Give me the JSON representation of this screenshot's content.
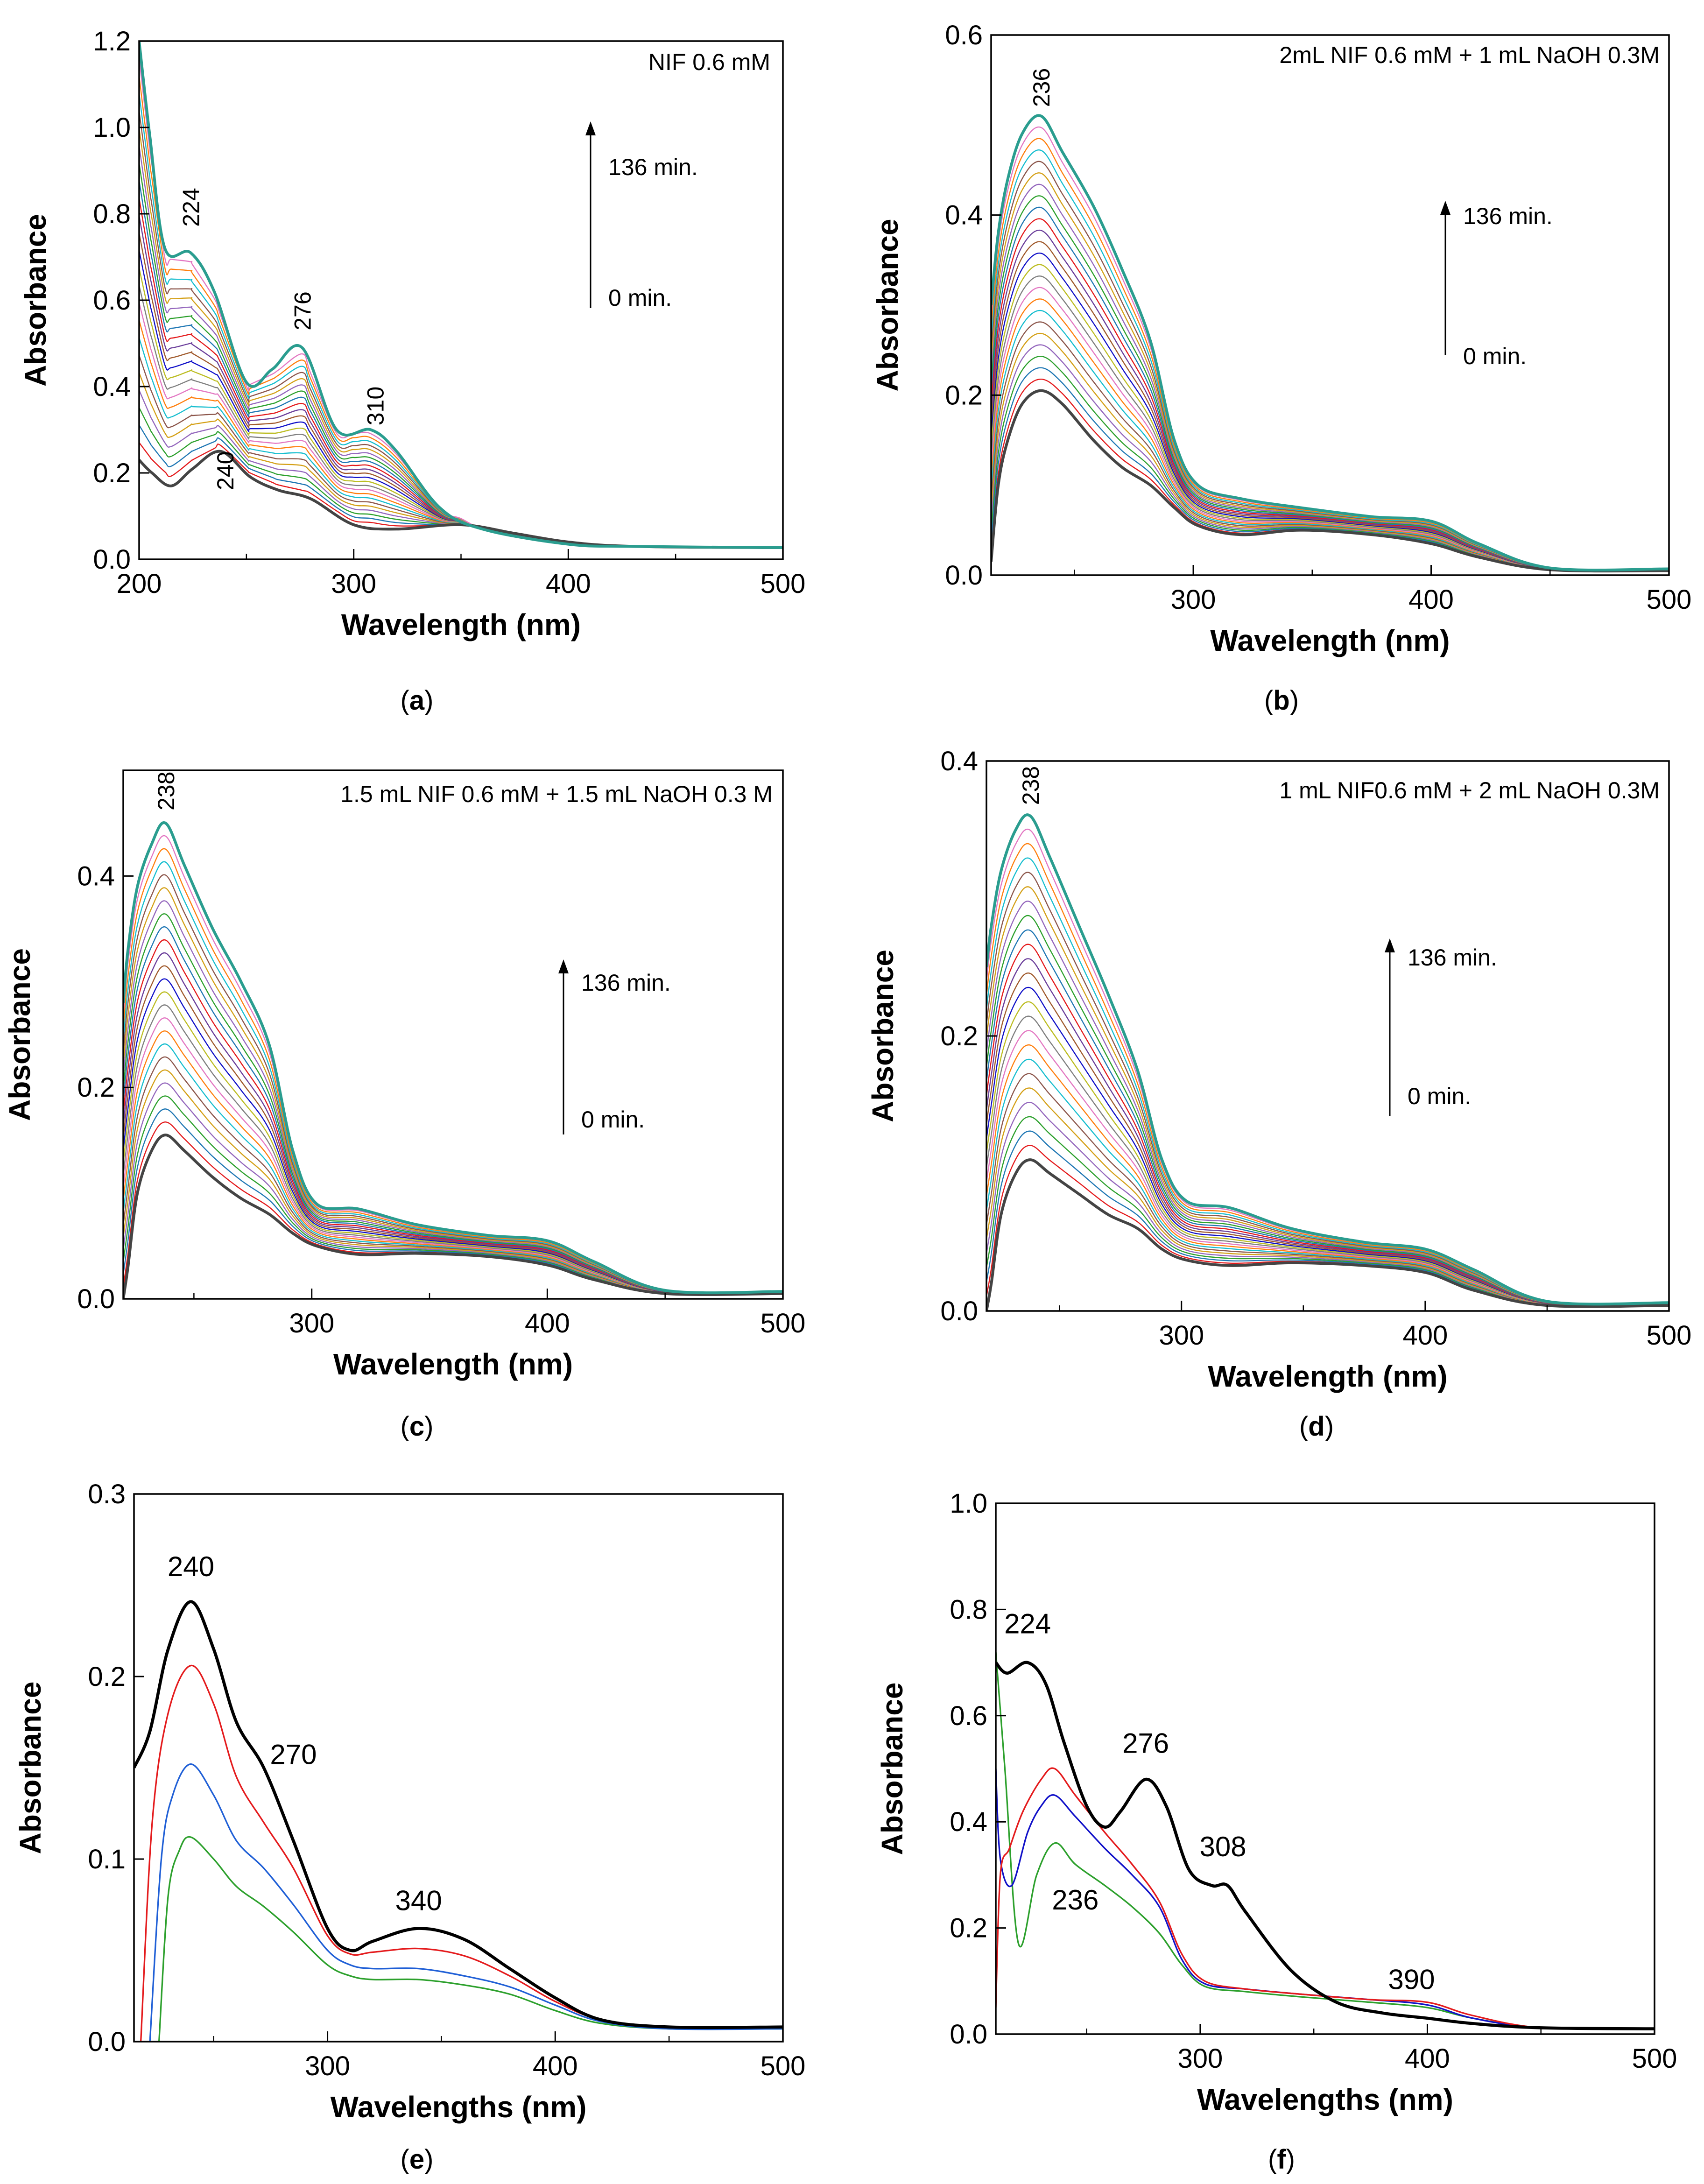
{
  "chart_data": [
    {
      "type": "line",
      "panel_label": "(a)",
      "label_letter": "a",
      "title": "NIF 0.6 mM",
      "xlabel": "Wavelength (nm)",
      "ylabel": "Absorbance",
      "xlim": [
        200,
        500
      ],
      "ylim": [
        0,
        1.2
      ],
      "xticks": [
        200,
        300,
        400,
        500
      ],
      "yticks": [
        0.0,
        0.2,
        0.4,
        0.6,
        0.8,
        1.0,
        1.2
      ],
      "ytick_labels": [
        "0.0",
        "0.2",
        "0.4",
        "0.6",
        "0.8",
        "1.0",
        "1.2"
      ],
      "time_arrow": {
        "start": "0 min.",
        "end": "136 min."
      },
      "peak_labels": [
        {
          "text": "224",
          "x": 224,
          "y": 0.77,
          "rotate": true
        },
        {
          "text": "276",
          "x": 276,
          "y": 0.53,
          "rotate": true
        },
        {
          "text": "310",
          "x": 310,
          "y": 0.31,
          "rotate": true
        },
        {
          "text": "240",
          "x": 240,
          "y": 0.16,
          "rotate": true
        }
      ],
      "series": [
        {
          "name": "0 min.",
          "emphasis": "first",
          "x": [
            200,
            206,
            215,
            225,
            238,
            252,
            265,
            280,
            300,
            320,
            350,
            375,
            400,
            430,
            500
          ],
          "y": [
            0.23,
            0.2,
            0.17,
            0.21,
            0.25,
            0.19,
            0.16,
            0.14,
            0.08,
            0.07,
            0.08,
            0.06,
            0.04,
            0.03,
            0.027
          ]
        },
        {
          "name": "136 min.",
          "emphasis": "last",
          "x": [
            200,
            205,
            212,
            224,
            235,
            250,
            262,
            276,
            292,
            308,
            320,
            340,
            360,
            400,
            430,
            500
          ],
          "y": [
            1.2,
            0.98,
            0.72,
            0.71,
            0.62,
            0.41,
            0.44,
            0.49,
            0.3,
            0.3,
            0.25,
            0.12,
            0.07,
            0.035,
            0.03,
            0.027
          ]
        }
      ]
    },
    {
      "type": "line",
      "panel_label": "(b)",
      "label_letter": "b",
      "title": "2mL NIF 0.6 mM + 1 mL NaOH 0.3M",
      "xlabel": "Wavelength (nm)",
      "ylabel": "Absorbance",
      "xlim": [
        215,
        500
      ],
      "ylim": [
        0,
        0.6
      ],
      "xticks": [
        300,
        400,
        500
      ],
      "yticks": [
        0.0,
        0.2,
        0.4,
        0.6
      ],
      "ytick_labels": [
        "0.0",
        "0.2",
        "0.4",
        "0.6"
      ],
      "time_arrow": {
        "start": "0 min.",
        "end": "136 min."
      },
      "peak_labels": [
        {
          "text": "236",
          "x": 236,
          "y": 0.52,
          "rotate": true
        }
      ],
      "series": [
        {
          "name": "0 min.",
          "emphasis": "first",
          "x": [
            215,
            218,
            222,
            228,
            236,
            245,
            258,
            270,
            282,
            292,
            302,
            320,
            345,
            375,
            400,
            420,
            450,
            500
          ],
          "y": [
            0.015,
            0.1,
            0.15,
            0.19,
            0.205,
            0.19,
            0.15,
            0.12,
            0.1,
            0.075,
            0.055,
            0.045,
            0.05,
            0.045,
            0.035,
            0.02,
            0.006,
            0.005
          ]
        },
        {
          "name": "136 min.",
          "emphasis": "last",
          "x": [
            215,
            218,
            222,
            228,
            236,
            245,
            258,
            270,
            282,
            292,
            302,
            320,
            345,
            375,
            400,
            420,
            450,
            500
          ],
          "y": [
            0.3,
            0.38,
            0.44,
            0.49,
            0.51,
            0.47,
            0.41,
            0.34,
            0.26,
            0.15,
            0.1,
            0.085,
            0.075,
            0.065,
            0.06,
            0.035,
            0.008,
            0.007
          ]
        }
      ]
    },
    {
      "type": "line",
      "panel_label": "(c)",
      "label_letter": "c",
      "title": "1.5 mL NIF 0.6 mM + 1.5 mL NaOH 0.3 M",
      "xlabel": "Wavelength (nm)",
      "ylabel": "Absorbance",
      "xlim": [
        220,
        500
      ],
      "ylim": [
        0,
        0.5
      ],
      "xticks": [
        300,
        400,
        500
      ],
      "yticks": [
        0.0,
        0.2,
        0.4
      ],
      "ytick_labels": [
        "0.0",
        "0.2",
        "0.4"
      ],
      "time_arrow": {
        "start": "0 min.",
        "end": "136 min."
      },
      "peak_labels": [
        {
          "text": "238",
          "x": 238,
          "y": 0.462,
          "rotate": true
        }
      ],
      "series": [
        {
          "name": "0 min.",
          "emphasis": "first",
          "x": [
            220,
            222,
            226,
            232,
            238,
            246,
            258,
            270,
            282,
            292,
            302,
            320,
            345,
            375,
            400,
            420,
            450,
            500
          ],
          "y": [
            0.0,
            0.03,
            0.1,
            0.14,
            0.155,
            0.14,
            0.115,
            0.095,
            0.08,
            0.062,
            0.05,
            0.042,
            0.043,
            0.04,
            0.032,
            0.018,
            0.005,
            0.005
          ]
        },
        {
          "name": "136 min.",
          "emphasis": "last",
          "x": [
            220,
            222,
            226,
            232,
            238,
            246,
            258,
            270,
            282,
            292,
            302,
            320,
            345,
            375,
            400,
            420,
            450,
            500
          ],
          "y": [
            0.28,
            0.33,
            0.39,
            0.43,
            0.45,
            0.41,
            0.35,
            0.3,
            0.24,
            0.14,
            0.09,
            0.085,
            0.07,
            0.06,
            0.055,
            0.035,
            0.008,
            0.007
          ]
        }
      ]
    },
    {
      "type": "line",
      "panel_label": "(d)",
      "label_letter": "d",
      "title": "1 mL NIF0.6 mM + 2 mL NaOH 0.3M",
      "xlabel": "Wavelength (nm)",
      "ylabel": "Absorbance",
      "xlim": [
        220,
        500
      ],
      "ylim": [
        0,
        0.4
      ],
      "xticks": [
        300,
        400,
        500
      ],
      "yticks": [
        0.0,
        0.2,
        0.4
      ],
      "ytick_labels": [
        "0.0",
        "0.2",
        "0.4"
      ],
      "time_arrow": {
        "start": "0 min.",
        "end": "136 min."
      },
      "peak_labels": [
        {
          "text": "238",
          "x": 238,
          "y": 0.368,
          "rotate": true
        }
      ],
      "series": [
        {
          "name": "0 min.",
          "emphasis": "first",
          "x": [
            220,
            222,
            226,
            232,
            238,
            246,
            258,
            270,
            282,
            292,
            302,
            320,
            345,
            375,
            400,
            420,
            450,
            500
          ],
          "y": [
            0.0,
            0.02,
            0.07,
            0.1,
            0.11,
            0.1,
            0.085,
            0.07,
            0.06,
            0.045,
            0.037,
            0.033,
            0.035,
            0.033,
            0.028,
            0.015,
            0.004,
            0.004
          ]
        },
        {
          "name": "136 min.",
          "emphasis": "last",
          "x": [
            220,
            222,
            226,
            232,
            238,
            246,
            258,
            270,
            282,
            292,
            302,
            320,
            345,
            375,
            400,
            420,
            450,
            500
          ],
          "y": [
            0.25,
            0.28,
            0.32,
            0.35,
            0.36,
            0.33,
            0.28,
            0.23,
            0.175,
            0.11,
            0.08,
            0.075,
            0.06,
            0.05,
            0.045,
            0.03,
            0.007,
            0.006
          ]
        }
      ]
    },
    {
      "type": "line",
      "panel_label": "(e)",
      "label_letter": "e",
      "title": "",
      "xlabel": "Wavelengths (nm)",
      "ylabel": "Absorbance",
      "xlim": [
        215,
        500
      ],
      "ylim": [
        0,
        0.3
      ],
      "xticks": [
        300,
        400,
        500
      ],
      "yticks": [
        0.0,
        0.1,
        0.2,
        0.3
      ],
      "ytick_labels": [
        "0.0",
        "0.1",
        "0.2",
        "0.3"
      ],
      "peak_labels": [
        {
          "text": "240",
          "x": 240,
          "y": 0.255,
          "rotate": false
        },
        {
          "text": "270",
          "x": 285,
          "y": 0.152,
          "rotate": false
        },
        {
          "text": "340",
          "x": 340,
          "y": 0.072,
          "rotate": false
        }
      ],
      "series": [
        {
          "name": "black",
          "color": "#000000",
          "width": 3,
          "x": [
            215,
            222,
            230,
            240,
            250,
            260,
            272,
            285,
            300,
            310,
            320,
            340,
            360,
            380,
            400,
            420,
            450,
            500
          ],
          "y": [
            0.15,
            0.17,
            0.215,
            0.241,
            0.215,
            0.175,
            0.15,
            0.11,
            0.062,
            0.05,
            0.055,
            0.062,
            0.056,
            0.04,
            0.024,
            0.012,
            0.008,
            0.008
          ]
        },
        {
          "name": "red",
          "color": "#e41a1c",
          "width": 1.5,
          "x": [
            218,
            223,
            230,
            240,
            250,
            260,
            272,
            285,
            300,
            310,
            320,
            340,
            360,
            380,
            400,
            420,
            450,
            500
          ],
          "y": [
            0.0,
            0.12,
            0.18,
            0.206,
            0.185,
            0.145,
            0.12,
            0.095,
            0.058,
            0.048,
            0.049,
            0.051,
            0.047,
            0.036,
            0.022,
            0.012,
            0.008,
            0.008
          ]
        },
        {
          "name": "blue",
          "color": "#1f5fd6",
          "width": 1.5,
          "x": [
            222,
            227,
            232,
            240,
            250,
            260,
            272,
            285,
            300,
            310,
            320,
            340,
            360,
            380,
            400,
            420,
            450,
            500
          ],
          "y": [
            0.0,
            0.1,
            0.135,
            0.152,
            0.135,
            0.11,
            0.095,
            0.075,
            0.05,
            0.042,
            0.04,
            0.04,
            0.036,
            0.03,
            0.02,
            0.011,
            0.007,
            0.007
          ]
        },
        {
          "name": "green",
          "color": "#2ca02c",
          "width": 1.5,
          "x": [
            226,
            230,
            235,
            240,
            250,
            260,
            272,
            285,
            300,
            310,
            320,
            340,
            360,
            380,
            400,
            420,
            450,
            500
          ],
          "y": [
            0.0,
            0.08,
            0.105,
            0.112,
            0.1,
            0.085,
            0.074,
            0.06,
            0.042,
            0.036,
            0.034,
            0.034,
            0.031,
            0.026,
            0.017,
            0.01,
            0.007,
            0.007
          ]
        }
      ]
    },
    {
      "type": "line",
      "panel_label": "(f)",
      "label_letter": "f",
      "title": "",
      "xlabel": "Wavelengths (nm)",
      "ylabel": "Absorbance",
      "xlim": [
        210,
        500
      ],
      "ylim": [
        0,
        1.0
      ],
      "xticks": [
        300,
        400,
        500
      ],
      "yticks": [
        0.0,
        0.2,
        0.4,
        0.6,
        0.8,
        1.0
      ],
      "ytick_labels": [
        "0.0",
        "0.2",
        "0.4",
        "0.6",
        "0.8",
        "1.0"
      ],
      "peak_labels": [
        {
          "text": "224",
          "x": 224,
          "y": 0.755,
          "rotate": false
        },
        {
          "text": "276",
          "x": 276,
          "y": 0.53,
          "rotate": false
        },
        {
          "text": "308",
          "x": 310,
          "y": 0.335,
          "rotate": false
        },
        {
          "text": "236",
          "x": 245,
          "y": 0.235,
          "rotate": false
        },
        {
          "text": "390",
          "x": 393,
          "y": 0.085,
          "rotate": false
        }
      ],
      "series": [
        {
          "name": "black",
          "color": "#000000",
          "width": 3,
          "x": [
            210,
            215,
            224,
            232,
            240,
            250,
            258,
            265,
            276,
            285,
            295,
            305,
            312,
            320,
            340,
            360,
            380,
            400,
            420,
            450,
            500
          ],
          "y": [
            0.7,
            0.68,
            0.7,
            0.66,
            0.55,
            0.43,
            0.39,
            0.42,
            0.48,
            0.43,
            0.31,
            0.28,
            0.28,
            0.23,
            0.12,
            0.06,
            0.04,
            0.03,
            0.02,
            0.012,
            0.01
          ]
        },
        {
          "name": "red",
          "color": "#e41a1c",
          "width": 1.5,
          "x": [
            210,
            212,
            216,
            222,
            230,
            236,
            245,
            258,
            270,
            282,
            292,
            302,
            320,
            345,
            375,
            400,
            420,
            450,
            500
          ],
          "y": [
            0.05,
            0.3,
            0.35,
            0.42,
            0.48,
            0.5,
            0.45,
            0.38,
            0.32,
            0.25,
            0.15,
            0.1,
            0.085,
            0.075,
            0.065,
            0.06,
            0.035,
            0.012,
            0.01
          ]
        },
        {
          "name": "blue",
          "color": "#1010c8",
          "width": 1.5,
          "x": [
            210,
            212,
            217,
            224,
            230,
            236,
            245,
            258,
            270,
            282,
            292,
            302,
            320,
            345,
            375,
            400,
            420,
            450,
            500
          ],
          "y": [
            0.5,
            0.33,
            0.28,
            0.38,
            0.43,
            0.45,
            0.41,
            0.35,
            0.3,
            0.24,
            0.14,
            0.095,
            0.085,
            0.075,
            0.065,
            0.055,
            0.03,
            0.012,
            0.01
          ]
        },
        {
          "name": "green",
          "color": "#2ca02c",
          "width": 1.5,
          "x": [
            210,
            214,
            220,
            228,
            236,
            245,
            258,
            270,
            282,
            292,
            302,
            320,
            345,
            375,
            400,
            420,
            450,
            500
          ],
          "y": [
            0.72,
            0.5,
            0.17,
            0.3,
            0.36,
            0.32,
            0.28,
            0.24,
            0.19,
            0.13,
            0.09,
            0.08,
            0.07,
            0.06,
            0.05,
            0.03,
            0.012,
            0.01
          ]
        }
      ]
    }
  ]
}
